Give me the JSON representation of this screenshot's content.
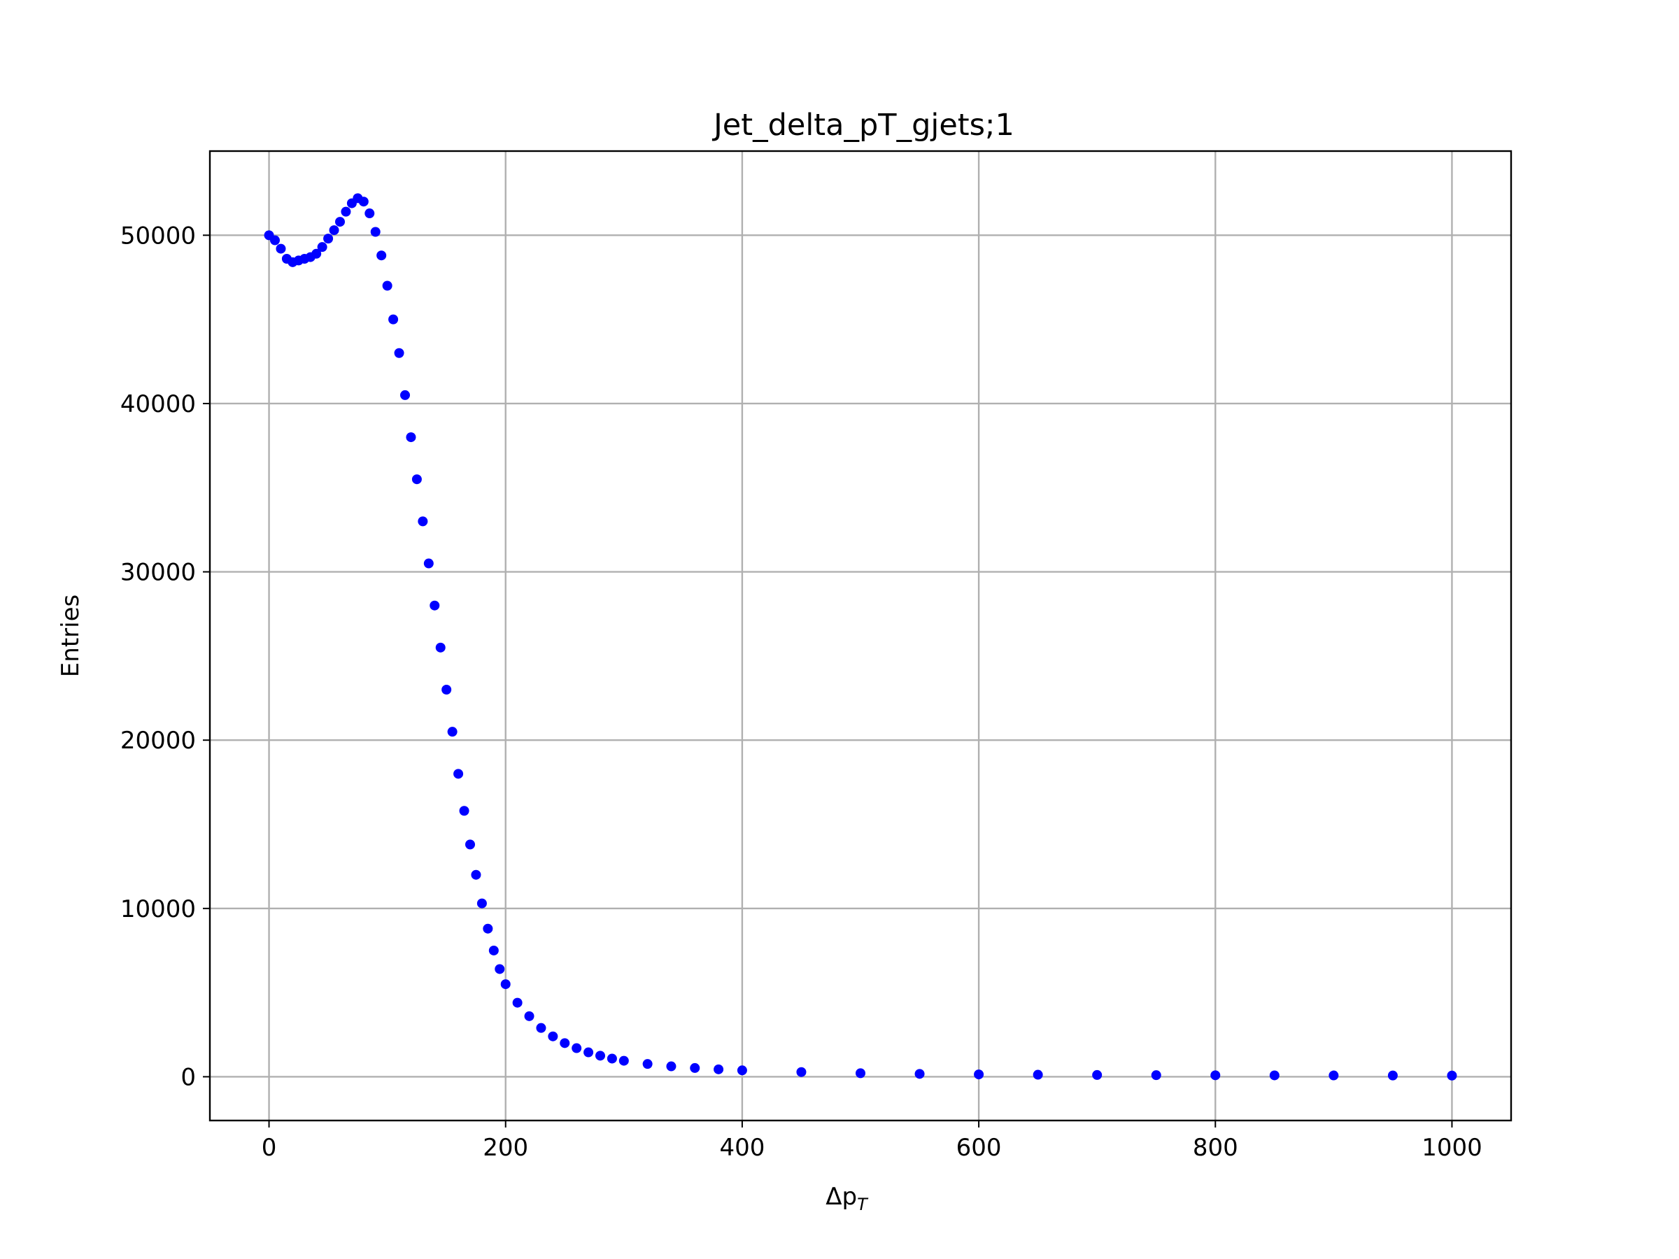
{
  "chart_data": {
    "type": "scatter",
    "title": "Jet_delta_pT_gjets;1",
    "xlabel": "Δp",
    "xlabel_subscript": "T",
    "ylabel": "Entries",
    "xlim": [
      -50,
      1050
    ],
    "ylim": [
      -2600,
      55000
    ],
    "xticks": [
      0,
      200,
      400,
      600,
      800,
      1000
    ],
    "yticks": [
      0,
      10000,
      20000,
      30000,
      40000,
      50000
    ],
    "xtick_labels": [
      "0",
      "200",
      "400",
      "600",
      "800",
      "1000"
    ],
    "ytick_labels": [
      "0",
      "10000",
      "20000",
      "30000",
      "40000",
      "50000"
    ],
    "grid": true,
    "marker_color": "#0000ff",
    "series": [
      {
        "x": [
          0,
          5,
          10,
          15,
          20,
          25,
          30,
          35,
          40,
          45,
          50,
          55,
          60,
          65,
          70,
          75,
          80,
          85,
          90,
          95,
          100,
          105,
          110,
          115,
          120,
          125,
          130,
          135,
          140,
          145,
          150,
          155,
          160,
          165,
          170,
          175,
          180,
          185,
          190,
          195,
          200,
          210,
          220,
          230,
          240,
          250,
          260,
          270,
          280,
          290,
          300,
          320,
          340,
          360,
          380,
          400,
          450,
          500,
          550,
          600,
          650,
          700,
          750,
          800,
          850,
          900,
          950,
          1000
        ],
        "y": [
          50000,
          49700,
          49200,
          48600,
          48400,
          48500,
          48600,
          48700,
          48900,
          49300,
          49800,
          50300,
          50800,
          51400,
          51900,
          52200,
          52000,
          51300,
          50200,
          48800,
          47000,
          45000,
          43000,
          40500,
          38000,
          35500,
          33000,
          30500,
          28000,
          25500,
          23000,
          20500,
          18000,
          15800,
          13800,
          12000,
          10300,
          8800,
          7500,
          6400,
          5500,
          4400,
          3600,
          2900,
          2400,
          2000,
          1700,
          1450,
          1250,
          1080,
          950,
          760,
          620,
          520,
          440,
          380,
          280,
          210,
          170,
          140,
          120,
          105,
          95,
          88,
          82,
          78,
          75,
          70
        ]
      }
    ]
  }
}
